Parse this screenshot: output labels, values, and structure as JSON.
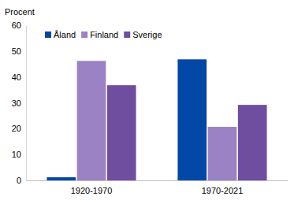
{
  "chart_data": {
    "type": "bar",
    "y_label": "Procent",
    "categories": [
      "1920-1970",
      "1970-2021"
    ],
    "series": [
      {
        "name": "Åland",
        "color": "#0047a6",
        "values": [
          1.2,
          46.8
        ]
      },
      {
        "name": "Finland",
        "color": "#9a82c4",
        "values": [
          46.2,
          20.7
        ]
      },
      {
        "name": "Sverige",
        "color": "#6f4e9f",
        "values": [
          36.8,
          29.2
        ]
      }
    ],
    "ylim": [
      0,
      60
    ],
    "yticks": [
      0,
      10,
      20,
      30,
      40,
      50,
      60
    ],
    "grid": false,
    "legend": "upper left"
  }
}
